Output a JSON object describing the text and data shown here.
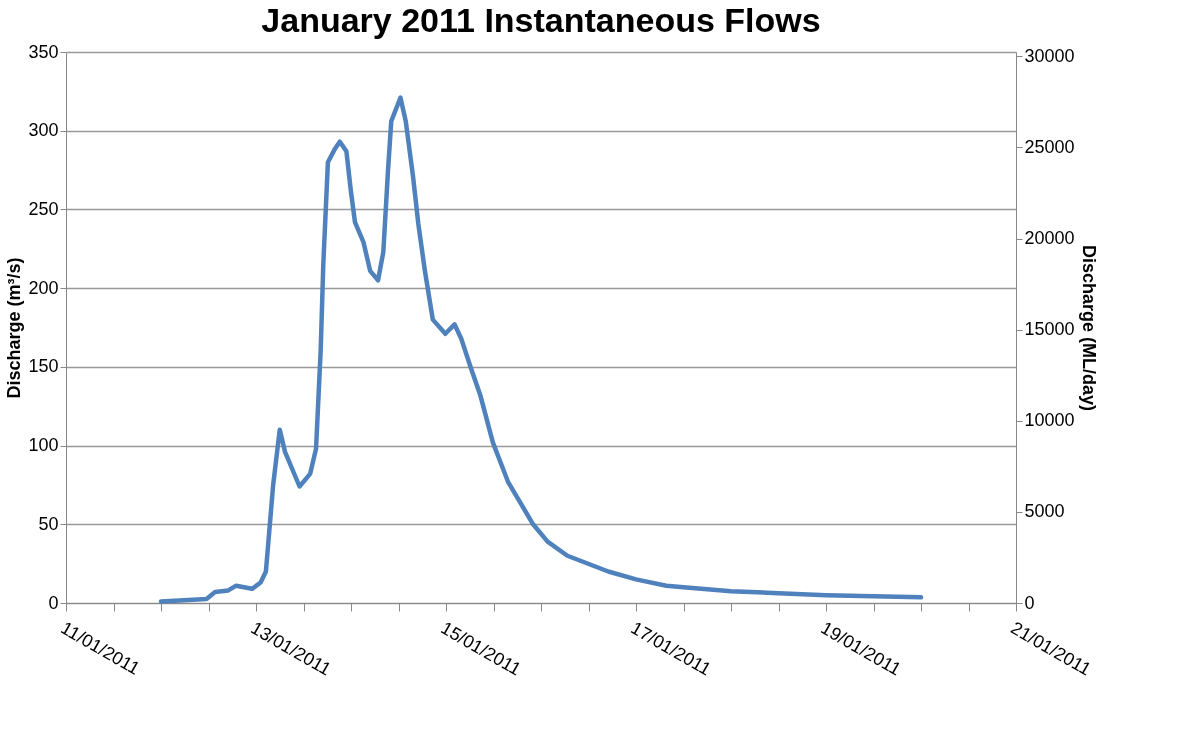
{
  "chart_data": {
    "type": "line",
    "title": "January 2011 Instantaneous Flows",
    "ylabel": "Discharge (m³/s)",
    "y2label": "Discharge (ML/day)",
    "x": [
      "2011-01-12T00:00",
      "2011-01-12T11:30",
      "2011-01-12T13:40",
      "2011-01-12T17:00",
      "2011-01-12T19:00",
      "2011-01-12T23:00",
      "2011-01-13T01:10",
      "2011-01-13T02:30",
      "2011-01-13T04:20",
      "2011-01-13T06:00",
      "2011-01-13T07:20",
      "2011-01-13T11:00",
      "2011-01-13T13:40",
      "2011-01-13T15:10",
      "2011-01-13T16:20",
      "2011-01-13T17:00",
      "2011-01-13T18:10",
      "2011-01-13T19:50",
      "2011-01-13T21:10",
      "2011-01-13T22:50",
      "2011-01-14T00:00",
      "2011-01-14T01:00",
      "2011-01-14T03:10",
      "2011-01-14T04:50",
      "2011-01-14T06:50",
      "2011-01-14T08:10",
      "2011-01-14T09:20",
      "2011-01-14T10:10",
      "2011-01-14T12:30",
      "2011-01-14T13:50",
      "2011-01-14T15:40",
      "2011-01-14T17:00",
      "2011-01-14T18:40",
      "2011-01-14T20:40",
      "2011-01-14T23:50",
      "2011-01-15T02:10",
      "2011-01-15T03:50",
      "2011-01-15T06:20",
      "2011-01-15T08:40",
      "2011-01-15T11:50",
      "2011-01-15T15:40",
      "2011-01-15T22:00",
      "2011-01-16T01:40",
      "2011-01-16T06:40",
      "2011-01-16T17:00",
      "2011-01-17T00:00",
      "2011-01-17T07:40",
      "2011-01-17T12:00",
      "2011-01-18T00:00",
      "2011-01-18T12:00",
      "2011-01-19T00:00",
      "2011-01-19T12:00",
      "2011-01-20T00:00"
    ],
    "series": [
      {
        "color": "#4f81bd",
        "values": [
          1,
          2.5,
          7,
          8,
          11,
          9,
          13,
          20,
          75,
          110,
          96,
          74,
          82,
          98,
          160,
          215,
          280,
          288,
          293,
          287,
          261,
          242,
          229,
          211,
          205,
          223,
          274,
          306,
          321,
          306,
          271,
          241,
          211,
          180,
          171,
          177,
          168,
          149,
          132,
          102,
          77,
          50,
          39,
          30,
          20,
          15,
          11,
          10,
          7.5,
          6.2,
          5,
          4.3,
          3.6
        ]
      }
    ],
    "xlim": [
      "2011-01-11T00:00",
      "2011-01-21T00:00"
    ],
    "xticks": [
      {
        "value": "2011-01-11T00:00",
        "label": "11/01/2011"
      },
      {
        "value": "2011-01-11T12:00",
        "label": null
      },
      {
        "value": "2011-01-12T00:00",
        "label": null
      },
      {
        "value": "2011-01-12T12:00",
        "label": null
      },
      {
        "value": "2011-01-13T00:00",
        "label": "13/01/2011"
      },
      {
        "value": "2011-01-13T12:00",
        "label": null
      },
      {
        "value": "2011-01-14T00:00",
        "label": null
      },
      {
        "value": "2011-01-14T12:00",
        "label": null
      },
      {
        "value": "2011-01-15T00:00",
        "label": "15/01/2011"
      },
      {
        "value": "2011-01-15T12:00",
        "label": null
      },
      {
        "value": "2011-01-16T00:00",
        "label": null
      },
      {
        "value": "2011-01-16T12:00",
        "label": null
      },
      {
        "value": "2011-01-17T00:00",
        "label": "17/01/2011"
      },
      {
        "value": "2011-01-17T12:00",
        "label": null
      },
      {
        "value": "2011-01-18T00:00",
        "label": null
      },
      {
        "value": "2011-01-18T12:00",
        "label": null
      },
      {
        "value": "2011-01-19T00:00",
        "label": "19/01/2011"
      },
      {
        "value": "2011-01-19T12:00",
        "label": null
      },
      {
        "value": "2011-01-20T00:00",
        "label": null
      },
      {
        "value": "2011-01-20T12:00",
        "label": null
      },
      {
        "value": "2011-01-21T00:00",
        "label": "21/01/2011"
      }
    ],
    "ylim": [
      0,
      350
    ],
    "yticks": [
      0,
      50,
      100,
      150,
      200,
      250,
      300,
      350
    ],
    "y2lim": [
      0,
      30240
    ],
    "y2ticks": [
      0,
      5000,
      10000,
      15000,
      20000,
      25000,
      30000
    ],
    "grid": "y",
    "marker": "none",
    "line_style": "solid"
  }
}
